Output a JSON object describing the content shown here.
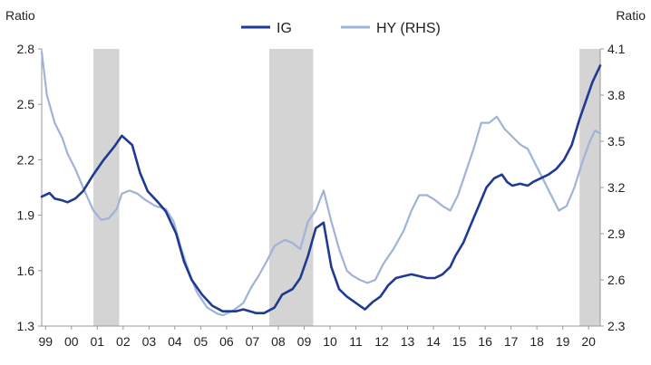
{
  "chart_data": {
    "type": "line",
    "left_axis_title": "Ratio",
    "right_axis_title": "Ratio",
    "left_ylim": [
      1.3,
      2.8
    ],
    "left_yticks": [
      "1.3",
      "1.6",
      "1.9",
      "2.2",
      "2.5",
      "2.8"
    ],
    "right_ylim": [
      2.3,
      4.1
    ],
    "right_yticks": [
      "2.3",
      "2.6",
      "2.9",
      "3.2",
      "3.5",
      "3.8",
      "4.1"
    ],
    "xlim": [
      1999.0,
      2020.6
    ],
    "x_tick_labels": [
      "99",
      "00",
      "01",
      "02",
      "03",
      "04",
      "05",
      "06",
      "07",
      "08",
      "09",
      "10",
      "11",
      "12",
      "13",
      "14",
      "15",
      "16",
      "17",
      "18",
      "19",
      "20"
    ],
    "recessions": [
      [
        2001.0,
        2002.0
      ],
      [
        2007.8,
        2009.5
      ],
      [
        2019.8,
        2020.6
      ]
    ],
    "grid": false,
    "legend_position": "top-center",
    "series": [
      {
        "name": "IG",
        "axis": "left",
        "color": "#1f3a93",
        "x": [
          1999.0,
          1999.3,
          1999.5,
          1999.8,
          2000.0,
          2000.3,
          2000.6,
          2001.0,
          2001.4,
          2001.8,
          2002.1,
          2002.5,
          2002.8,
          2003.1,
          2003.5,
          2003.8,
          2004.2,
          2004.5,
          2004.8,
          2005.2,
          2005.6,
          2006.0,
          2006.5,
          2006.8,
          2007.3,
          2007.6,
          2008.0,
          2008.3,
          2008.7,
          2009.0,
          2009.3,
          2009.6,
          2009.9,
          2010.2,
          2010.5,
          2010.8,
          2011.2,
          2011.5,
          2011.8,
          2012.1,
          2012.4,
          2012.7,
          2013.0,
          2013.3,
          2013.6,
          2013.9,
          2014.2,
          2014.5,
          2014.8,
          2015.0,
          2015.3,
          2015.6,
          2015.9,
          2016.2,
          2016.5,
          2016.8,
          2017.0,
          2017.2,
          2017.5,
          2017.8,
          2018.0,
          2018.3,
          2018.6,
          2018.9,
          2019.2,
          2019.5,
          2019.8,
          2020.0,
          2020.3,
          2020.6
        ],
        "values": [
          2.0,
          2.02,
          1.99,
          1.98,
          1.97,
          1.99,
          2.03,
          2.12,
          2.2,
          2.27,
          2.33,
          2.28,
          2.13,
          2.03,
          1.97,
          1.92,
          1.8,
          1.65,
          1.55,
          1.47,
          1.41,
          1.38,
          1.38,
          1.39,
          1.37,
          1.37,
          1.4,
          1.47,
          1.5,
          1.56,
          1.68,
          1.83,
          1.86,
          1.62,
          1.5,
          1.46,
          1.42,
          1.39,
          1.43,
          1.46,
          1.52,
          1.56,
          1.57,
          1.58,
          1.57,
          1.56,
          1.56,
          1.58,
          1.62,
          1.68,
          1.75,
          1.85,
          1.95,
          2.05,
          2.1,
          2.12,
          2.08,
          2.06,
          2.07,
          2.06,
          2.08,
          2.1,
          2.12,
          2.15,
          2.2,
          2.28,
          2.42,
          2.5,
          2.62,
          2.71
        ]
      },
      {
        "name": "HY (RHS)",
        "axis": "right",
        "color": "#9fb3d9",
        "x": [
          1999.0,
          1999.2,
          1999.5,
          1999.8,
          2000.0,
          2000.3,
          2000.6,
          2001.0,
          2001.3,
          2001.6,
          2001.9,
          2002.1,
          2002.4,
          2002.7,
          2003.0,
          2003.4,
          2003.8,
          2004.1,
          2004.4,
          2004.7,
          2005.0,
          2005.4,
          2005.8,
          2006.0,
          2006.4,
          2006.8,
          2007.1,
          2007.4,
          2007.7,
          2008.0,
          2008.4,
          2008.7,
          2009.0,
          2009.3,
          2009.6,
          2009.9,
          2010.2,
          2010.5,
          2010.8,
          2011.0,
          2011.3,
          2011.6,
          2011.9,
          2012.2,
          2012.6,
          2013.0,
          2013.3,
          2013.6,
          2013.9,
          2014.2,
          2014.5,
          2014.8,
          2015.1,
          2015.4,
          2015.7,
          2016.0,
          2016.3,
          2016.6,
          2016.9,
          2017.2,
          2017.5,
          2017.8,
          2018.1,
          2018.4,
          2018.7,
          2019.0,
          2019.3,
          2019.6,
          2019.9,
          2020.2,
          2020.4,
          2020.6
        ],
        "values": [
          4.08,
          3.8,
          3.62,
          3.52,
          3.42,
          3.32,
          3.2,
          3.05,
          2.99,
          3.0,
          3.06,
          3.16,
          3.18,
          3.16,
          3.12,
          3.08,
          3.06,
          2.98,
          2.8,
          2.65,
          2.52,
          2.42,
          2.38,
          2.37,
          2.4,
          2.45,
          2.55,
          2.63,
          2.72,
          2.82,
          2.86,
          2.84,
          2.8,
          2.98,
          3.05,
          3.18,
          2.98,
          2.8,
          2.66,
          2.63,
          2.6,
          2.58,
          2.6,
          2.7,
          2.8,
          2.92,
          3.05,
          3.15,
          3.15,
          3.12,
          3.08,
          3.05,
          3.15,
          3.3,
          3.45,
          3.62,
          3.62,
          3.66,
          3.58,
          3.53,
          3.48,
          3.45,
          3.35,
          3.25,
          3.15,
          3.05,
          3.08,
          3.2,
          3.36,
          3.5,
          3.57,
          3.55
        ]
      }
    ]
  }
}
